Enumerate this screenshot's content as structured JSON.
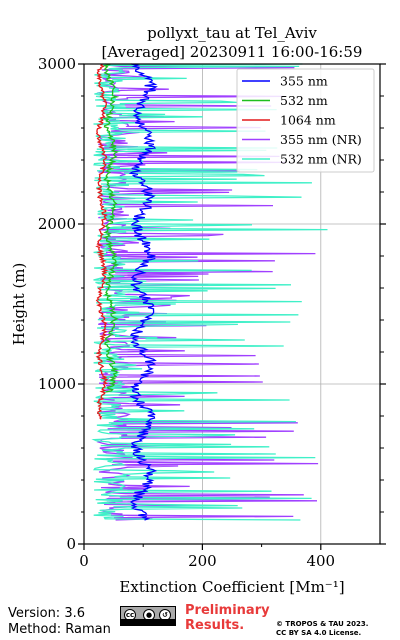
{
  "chart_data": {
    "type": "line",
    "title_line1": "pollyxt_tau at Tel_Aviv",
    "title_line2": "[Averaged] 20230911 16:00-16:59",
    "xlabel": "Extinction Coefficient [Mm⁻¹]",
    "ylabel": "Height (m)",
    "xlim": [
      0,
      500
    ],
    "ylim": [
      0,
      3000
    ],
    "xticks": [
      0,
      200,
      400
    ],
    "yticks": [
      0,
      1000,
      2000,
      3000
    ],
    "grid": true,
    "legend_placement": "top-right",
    "series": [
      {
        "name": "355 nm",
        "color": "#0000ff",
        "x_center": 100,
        "x_amp": 20,
        "y_range": [
          150,
          3000
        ],
        "pattern": "smooth"
      },
      {
        "name": "532 nm",
        "color": "#1fbf1f",
        "x_center": 45,
        "x_amp": 10,
        "y_range": [
          950,
          3000
        ],
        "pattern": "smooth"
      },
      {
        "name": "1064 nm",
        "color": "#e41a1c",
        "x_center": 30,
        "x_amp": 8,
        "y_range": [
          780,
          3000
        ],
        "pattern": "smooth"
      },
      {
        "name": "355 nm (NR)",
        "color": "#a040ff",
        "x_center": 60,
        "x_amp": 150,
        "y_range": [
          150,
          3000
        ],
        "pattern": "noisy"
      },
      {
        "name": "532 nm (NR)",
        "color": "#40f0c8",
        "x_center": 40,
        "x_amp": 160,
        "y_range": [
          150,
          3000
        ],
        "pattern": "noisy"
      }
    ]
  },
  "footer": {
    "version": "Version: 3.6",
    "method": "Method: Raman",
    "preliminary": "Preliminary",
    "results": "Results.",
    "copyright": "© TROPOS & TAU 2023.",
    "license": "CC BY SA 4.0 License.",
    "cc_badge": "cc",
    "cc_by": "BY",
    "cc_sa": "SA"
  }
}
